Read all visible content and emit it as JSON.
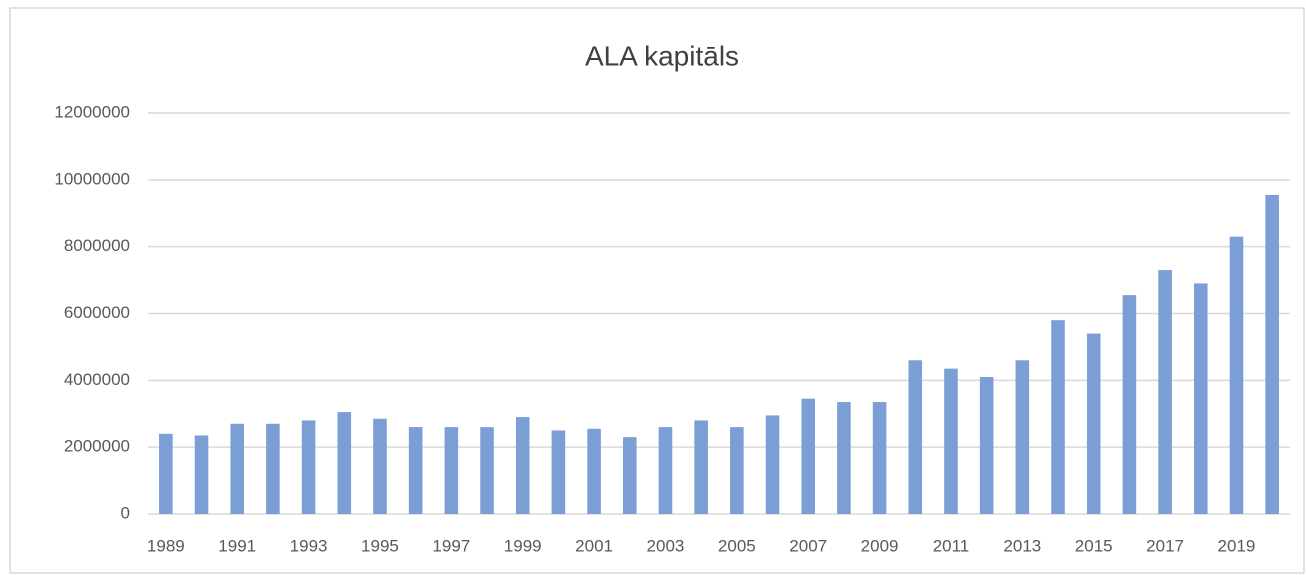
{
  "chart_data": {
    "type": "bar",
    "title": "ALA kapitāls",
    "categories": [
      "1989",
      null,
      "1991",
      null,
      "1993",
      null,
      "1995",
      null,
      "1997",
      null,
      "1999",
      null,
      "2001",
      null,
      "2003",
      null,
      "2005",
      null,
      "2007",
      null,
      "2009",
      null,
      "2011",
      null,
      "2013",
      null,
      "2015",
      null,
      "2017",
      null,
      "2019",
      null
    ],
    "values": [
      2400000,
      2350000,
      2700000,
      2700000,
      2800000,
      3050000,
      2850000,
      2600000,
      2600000,
      2600000,
      2900000,
      2500000,
      2550000,
      2300000,
      2600000,
      2800000,
      2600000,
      2950000,
      3450000,
      3350000,
      3350000,
      4600000,
      4350000,
      4100000,
      4600000,
      5800000,
      5400000,
      6550000,
      7300000,
      6900000,
      8300000,
      9550000
    ],
    "color": "#7b9ed4",
    "ylim": [
      0,
      12000000
    ],
    "yticks": [
      0,
      2000000,
      4000000,
      6000000,
      8000000,
      10000000,
      12000000
    ],
    "grid": true
  }
}
